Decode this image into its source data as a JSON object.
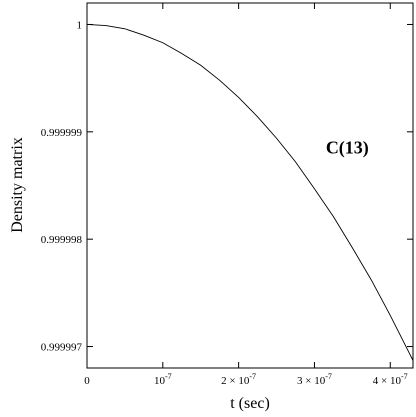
{
  "chart_data": {
    "type": "line",
    "xlabel": "t (sec)",
    "ylabel": "Density matrix",
    "xlim": [
      0,
      4.3e-07
    ],
    "ylim": [
      0.9999968,
      1.0000002
    ],
    "x_ticks": [
      {
        "value": 0,
        "label": "0",
        "exp": ""
      },
      {
        "value": 1e-07,
        "label": "10",
        "exp": "-7"
      },
      {
        "value": 2e-07,
        "label": "2 × 10",
        "exp": "-7"
      },
      {
        "value": 3e-07,
        "label": "3 × 10",
        "exp": "-7"
      },
      {
        "value": 4e-07,
        "label": "4 × 10",
        "exp": "-7"
      }
    ],
    "y_ticks": [
      {
        "value": 1.0,
        "label": "1"
      },
      {
        "value": 0.999999,
        "label": "0.999999"
      },
      {
        "value": 0.999998,
        "label": "0.999998"
      },
      {
        "value": 0.999997,
        "label": "0.999997"
      }
    ],
    "series": [
      {
        "x": [
          0,
          2.5e-08,
          5e-08,
          7.5e-08,
          1e-07,
          1.25e-07,
          1.5e-07,
          1.75e-07,
          2e-07,
          2.25e-07,
          2.5e-07,
          2.75e-07,
          3e-07,
          3.25e-07,
          3.5e-07,
          3.75e-07,
          4e-07,
          4.25e-07,
          4.3e-07
        ],
        "y": [
          1.0,
          0.99999999,
          0.99999996,
          0.9999999,
          0.99999983,
          0.99999973,
          0.99999962,
          0.99999948,
          0.99999932,
          0.99999914,
          0.99999894,
          0.99999872,
          0.99999847,
          0.99999821,
          0.99999792,
          0.99999762,
          0.99999729,
          0.99999694,
          0.99999687
        ]
      }
    ],
    "annotations": [
      {
        "text": "C(13)",
        "x": 3.15e-07,
        "y": 0.9999988
      }
    ],
    "grid": false
  }
}
